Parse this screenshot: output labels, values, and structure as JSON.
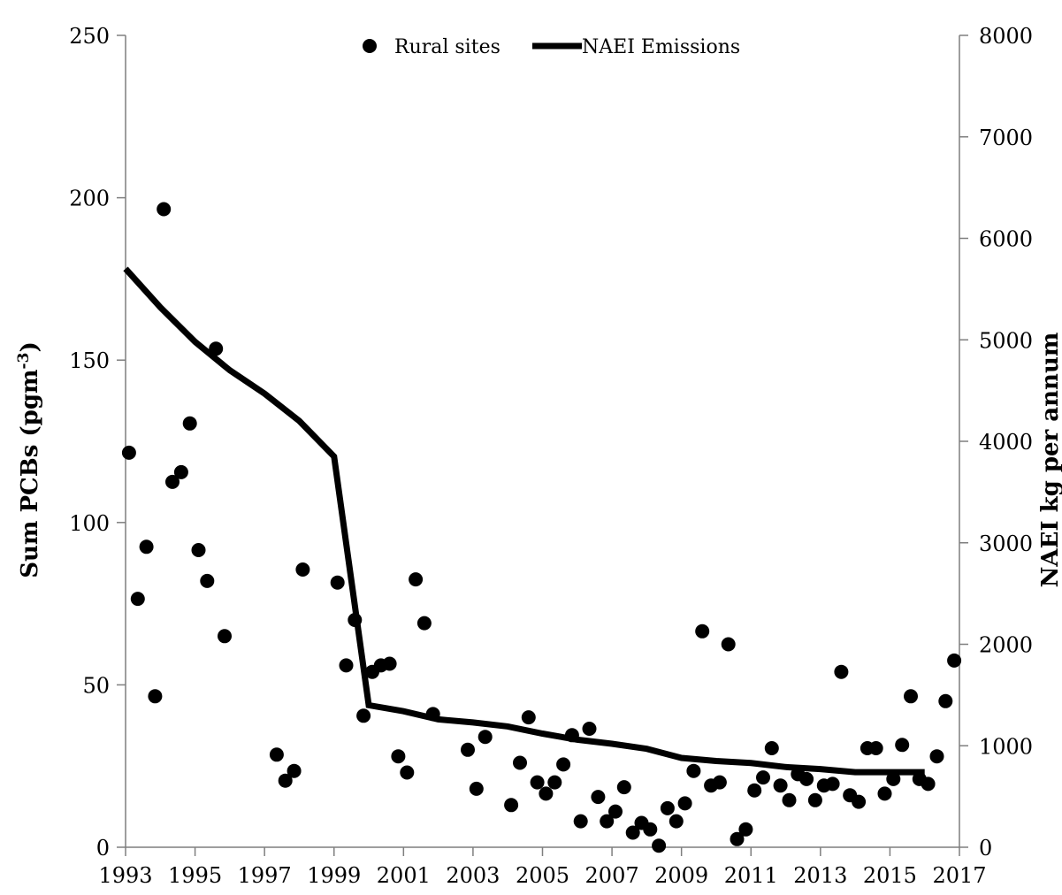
{
  "chart_data": {
    "type": "scatter+line",
    "title": "",
    "ylabel_left": "Sum PCBs (pgm-3)",
    "ylabel_left_main": "Sum PCBs (pgm",
    "ylabel_left_sup": "-3",
    "ylabel_left_close": ")",
    "ylabel_right": "NAEI kg per annum",
    "xlim": [
      1993,
      2017
    ],
    "ylim_left": [
      0,
      250
    ],
    "ylim_right": [
      0,
      8000
    ],
    "x_ticks": [
      "1993",
      "1995",
      "1997",
      "1999",
      "2001",
      "2003",
      "2005",
      "2007",
      "2009",
      "2011",
      "2013",
      "2015",
      "2017"
    ],
    "y_left_ticks": [
      "0",
      "50",
      "100",
      "150",
      "200",
      "250"
    ],
    "y_right_ticks": [
      "0",
      "1000",
      "2000",
      "3000",
      "4000",
      "5000",
      "6000",
      "7000",
      "8000"
    ],
    "legend": {
      "placement": "top-center",
      "entries": [
        "Rural sites",
        "NAEI Emissions"
      ]
    },
    "grid": false,
    "series": [
      {
        "name": "Rural sites",
        "kind": "scatter",
        "axis": "left",
        "color": "#000000",
        "points": [
          [
            1993.1,
            121.5
          ],
          [
            1993.35,
            76.5
          ],
          [
            1993.6,
            92.5
          ],
          [
            1993.85,
            46.5
          ],
          [
            1994.1,
            196.5
          ],
          [
            1994.35,
            112.5
          ],
          [
            1994.6,
            115.5
          ],
          [
            1994.85,
            130.5
          ],
          [
            1995.1,
            91.5
          ],
          [
            1995.35,
            82
          ],
          [
            1995.6,
            153.5
          ],
          [
            1995.85,
            65
          ],
          [
            1997.35,
            28.5
          ],
          [
            1997.6,
            20.5
          ],
          [
            1997.85,
            23.5
          ],
          [
            1998.1,
            85.5
          ],
          [
            1999.1,
            81.5
          ],
          [
            1999.35,
            56
          ],
          [
            1999.6,
            70
          ],
          [
            1999.85,
            40.5
          ],
          [
            2000.1,
            54
          ],
          [
            2000.35,
            56
          ],
          [
            2000.6,
            56.5
          ],
          [
            2000.85,
            28
          ],
          [
            2001.1,
            23
          ],
          [
            2001.35,
            82.5
          ],
          [
            2001.6,
            69
          ],
          [
            2001.85,
            41
          ],
          [
            2002.85,
            30
          ],
          [
            2003.1,
            18
          ],
          [
            2003.35,
            34
          ],
          [
            2004.1,
            13
          ],
          [
            2004.35,
            26
          ],
          [
            2004.6,
            40
          ],
          [
            2004.85,
            20
          ],
          [
            2005.1,
            16.5
          ],
          [
            2005.35,
            20
          ],
          [
            2005.6,
            25.5
          ],
          [
            2005.85,
            34.5
          ],
          [
            2006.1,
            8
          ],
          [
            2006.35,
            36.5
          ],
          [
            2006.6,
            15.5
          ],
          [
            2006.85,
            8
          ],
          [
            2007.1,
            11
          ],
          [
            2007.35,
            18.5
          ],
          [
            2007.6,
            4.5
          ],
          [
            2007.85,
            7.5
          ],
          [
            2008.1,
            5.5
          ],
          [
            2008.35,
            0.5
          ],
          [
            2008.6,
            12
          ],
          [
            2008.85,
            8
          ],
          [
            2009.1,
            13.5
          ],
          [
            2009.35,
            23.5
          ],
          [
            2009.6,
            66.5
          ],
          [
            2009.85,
            19
          ],
          [
            2010.1,
            20
          ],
          [
            2010.35,
            62.5
          ],
          [
            2010.6,
            2.5
          ],
          [
            2010.85,
            5.5
          ],
          [
            2011.1,
            17.5
          ],
          [
            2011.35,
            21.5
          ],
          [
            2011.6,
            30.5
          ],
          [
            2011.85,
            19
          ],
          [
            2012.1,
            14.5
          ],
          [
            2012.35,
            22.5
          ],
          [
            2012.6,
            21
          ],
          [
            2012.85,
            14.5
          ],
          [
            2013.1,
            19
          ],
          [
            2013.35,
            19.5
          ],
          [
            2013.6,
            54
          ],
          [
            2013.85,
            16
          ],
          [
            2014.1,
            14
          ],
          [
            2014.35,
            30.5
          ],
          [
            2014.6,
            30.5
          ],
          [
            2014.85,
            16.5
          ],
          [
            2015.1,
            21
          ],
          [
            2015.35,
            31.5
          ],
          [
            2015.6,
            46.5
          ],
          [
            2015.85,
            21
          ],
          [
            2016.1,
            19.5
          ],
          [
            2016.35,
            28
          ],
          [
            2016.6,
            45
          ],
          [
            2016.85,
            57.5
          ]
        ]
      },
      {
        "name": "NAEI Emissions",
        "kind": "line",
        "axis": "right",
        "color": "#000000",
        "points": [
          [
            1993,
            5700
          ],
          [
            1994,
            5320
          ],
          [
            1995,
            4980
          ],
          [
            1996,
            4700
          ],
          [
            1997,
            4470
          ],
          [
            1998,
            4200
          ],
          [
            1999,
            3850
          ],
          [
            2000,
            1400
          ],
          [
            2001,
            1340
          ],
          [
            2002,
            1260
          ],
          [
            2003,
            1230
          ],
          [
            2004,
            1190
          ],
          [
            2005,
            1120
          ],
          [
            2006,
            1060
          ],
          [
            2007,
            1020
          ],
          [
            2008,
            970
          ],
          [
            2009,
            880
          ],
          [
            2010,
            850
          ],
          [
            2011,
            830
          ],
          [
            2012,
            790
          ],
          [
            2013,
            770
          ],
          [
            2014,
            740
          ],
          [
            2015,
            740
          ],
          [
            2016,
            740
          ]
        ]
      }
    ]
  }
}
